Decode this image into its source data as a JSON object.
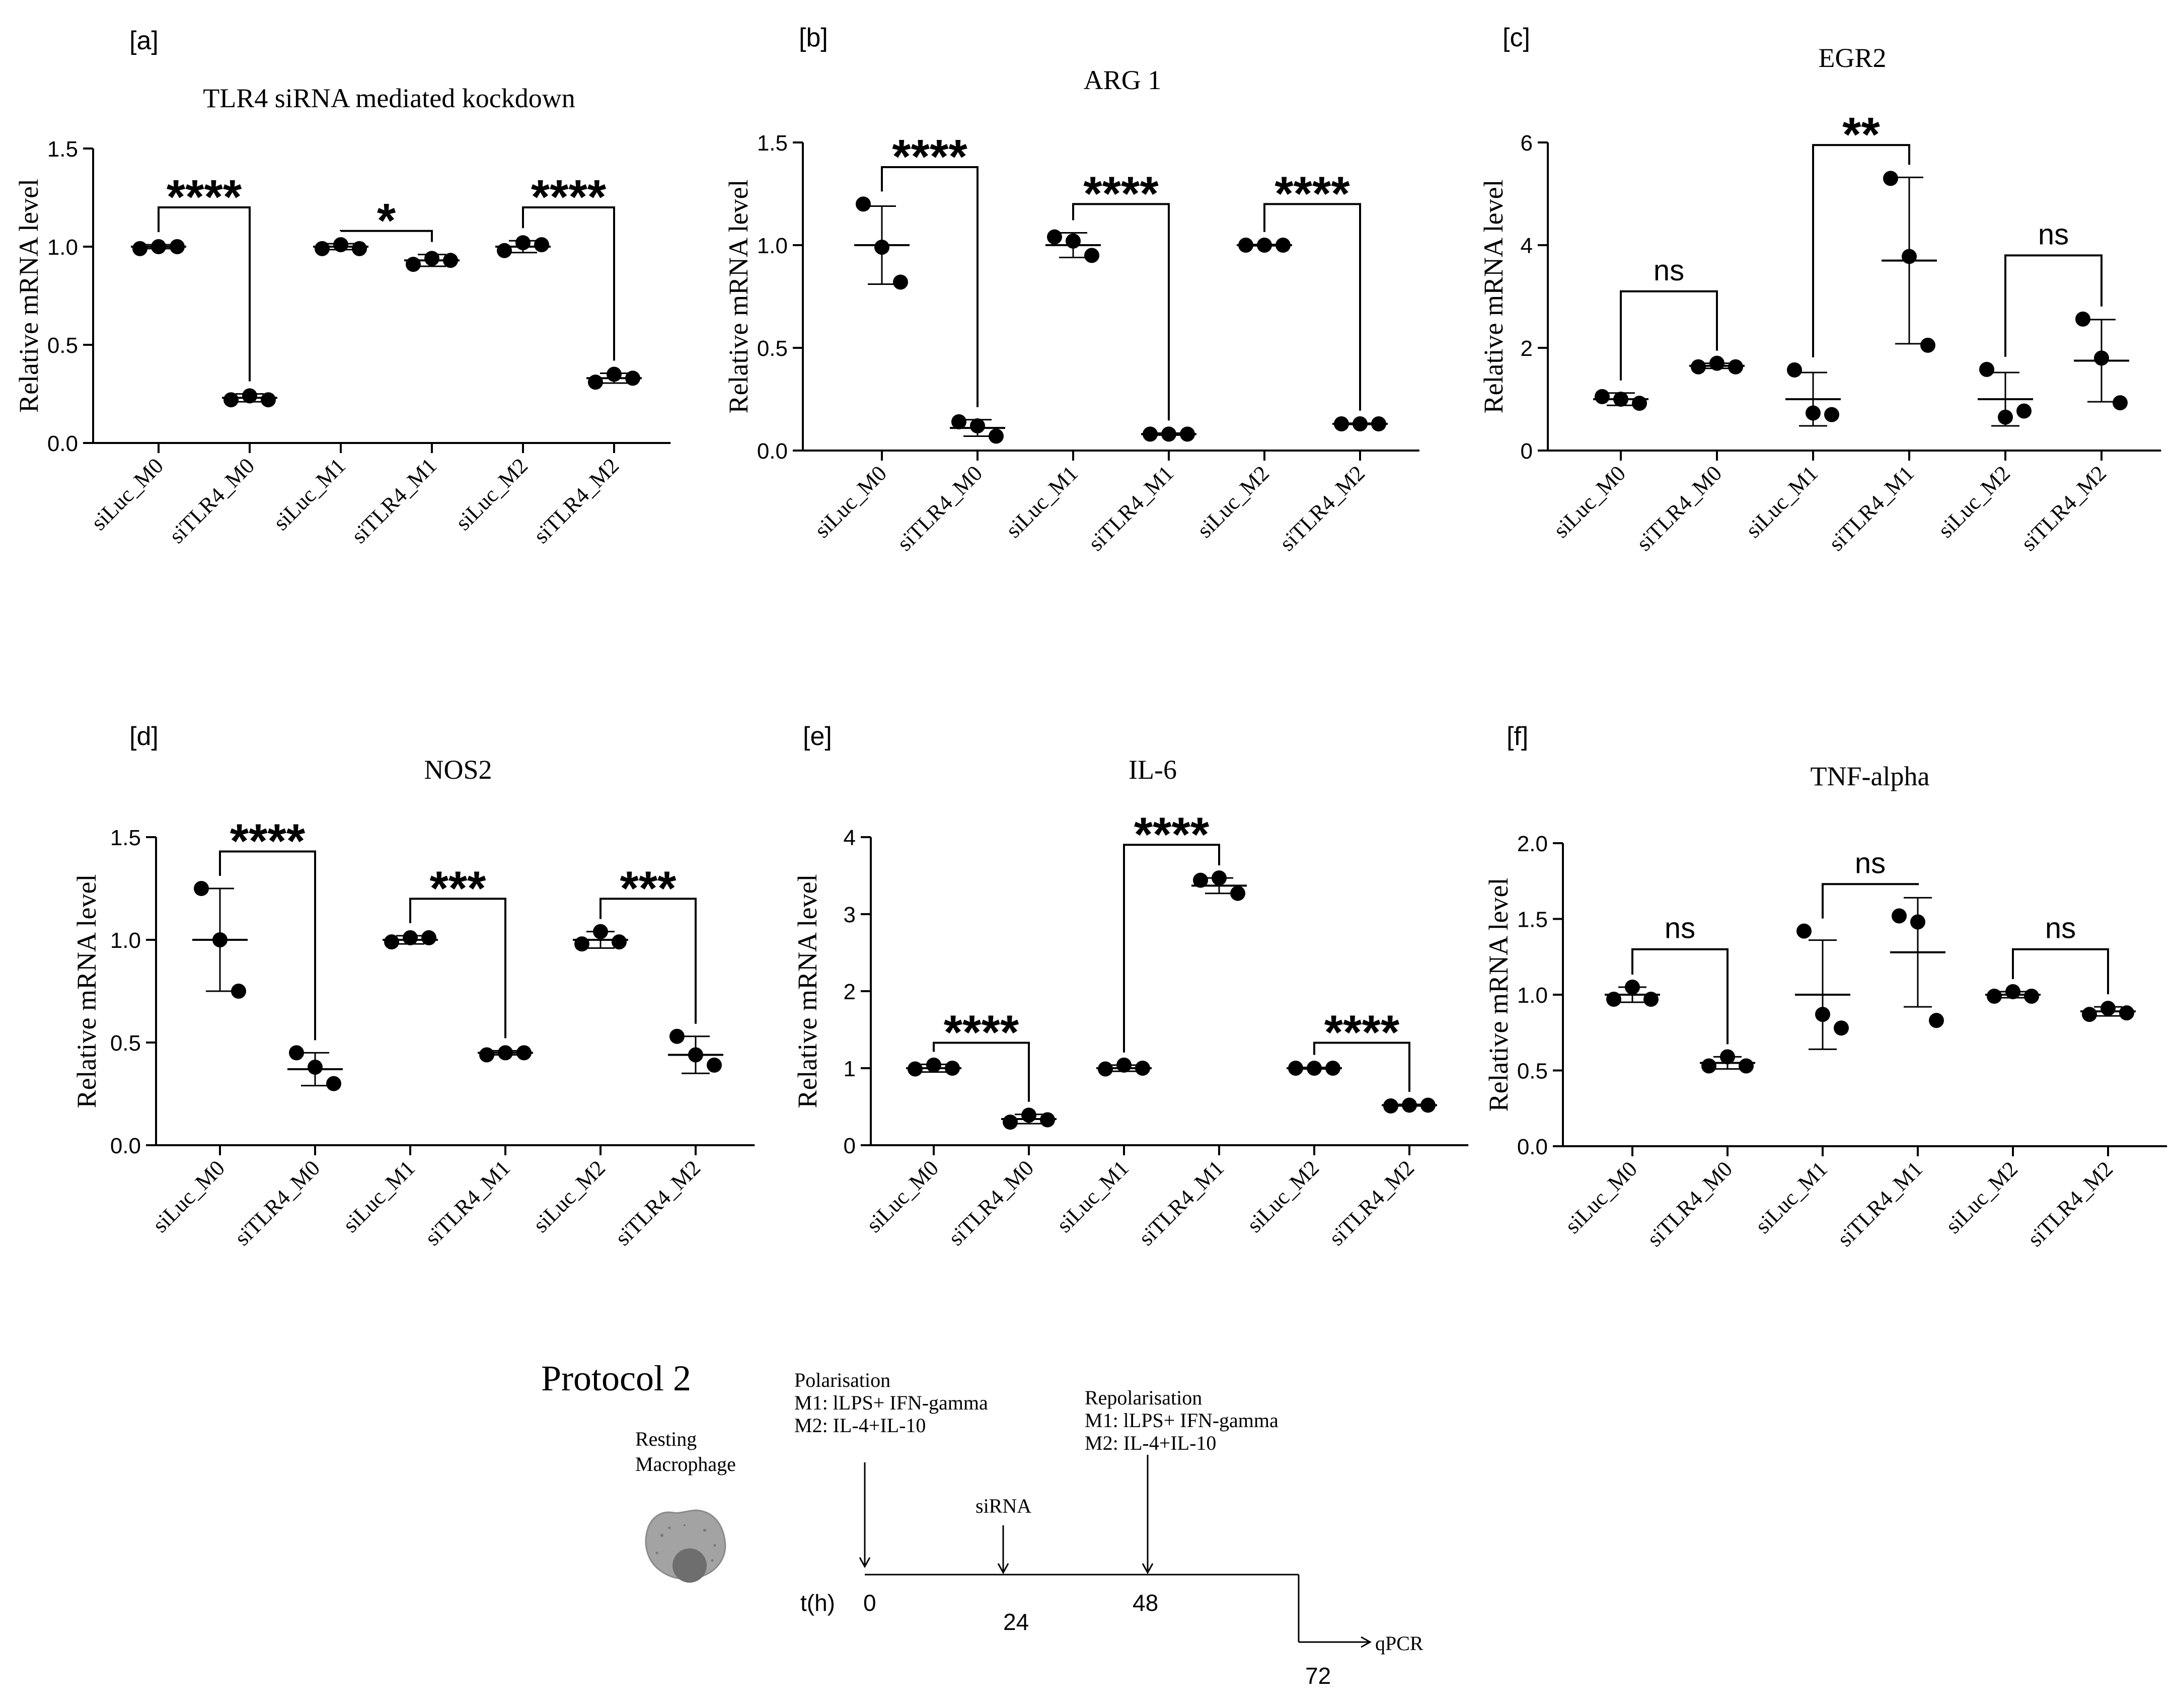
{
  "chart_data": [
    {
      "type": "scatter",
      "panel_label": "[a]",
      "title": "TLR4 siRNA mediated kockdown",
      "ylabel": "Relative mRNA level",
      "ylim": [
        0,
        1.5
      ],
      "yticks": [
        0,
        0.5,
        1.0,
        1.5
      ],
      "ytick_labels": [
        "0.0",
        "0.5",
        "1.0",
        "1.5"
      ],
      "categories": [
        "siLuc_M0",
        "siTLR4_M0",
        "siLuc_M1",
        "siTLR4_M1",
        "siLuc_M2",
        "siTLR4_M2"
      ],
      "groups": [
        {
          "mean": 1.0,
          "sd": 0.01,
          "points": [
            0.99,
            1.0,
            1.0
          ]
        },
        {
          "mean": 0.23,
          "sd": 0.02,
          "points": [
            0.22,
            0.24,
            0.22
          ]
        },
        {
          "mean": 1.0,
          "sd": 0.015,
          "points": [
            0.99,
            1.01,
            0.99
          ]
        },
        {
          "mean": 0.93,
          "sd": 0.03,
          "points": [
            0.91,
            0.94,
            0.93
          ]
        },
        {
          "mean": 1.0,
          "sd": 0.03,
          "points": [
            0.98,
            1.02,
            1.01
          ]
        },
        {
          "mean": 0.33,
          "sd": 0.025,
          "points": [
            0.31,
            0.35,
            0.33
          ]
        }
      ],
      "comparisons": [
        {
          "from": 0,
          "to": 1,
          "y": 1.2,
          "label": "****"
        },
        {
          "from": 2,
          "to": 3,
          "y": 1.08,
          "label": "*"
        },
        {
          "from": 4,
          "to": 5,
          "y": 1.2,
          "label": "****"
        }
      ]
    },
    {
      "type": "scatter",
      "panel_label": "[b]",
      "title": "ARG 1",
      "ylabel": "Relative mRNA level",
      "ylim": [
        0,
        1.5
      ],
      "yticks": [
        0,
        0.5,
        1.0,
        1.5
      ],
      "ytick_labels": [
        "0.0",
        "0.5",
        "1.0",
        "1.5"
      ],
      "categories": [
        "siLuc_M0",
        "siTLR4_M0",
        "siLuc_M1",
        "siTLR4_M1",
        "siLuc_M2",
        "siTLR4_M2"
      ],
      "groups": [
        {
          "mean": 1.0,
          "sd": 0.19,
          "points": [
            1.2,
            0.99,
            0.82
          ]
        },
        {
          "mean": 0.11,
          "sd": 0.04,
          "points": [
            0.14,
            0.12,
            0.07
          ]
        },
        {
          "mean": 1.0,
          "sd": 0.06,
          "points": [
            1.04,
            1.02,
            0.95
          ]
        },
        {
          "mean": 0.08,
          "sd": 0.005,
          "points": [
            0.08,
            0.08,
            0.08
          ]
        },
        {
          "mean": 1.0,
          "sd": 0.003,
          "points": [
            1.0,
            1.0,
            1.0
          ]
        },
        {
          "mean": 0.13,
          "sd": 0.003,
          "points": [
            0.13,
            0.13,
            0.13
          ]
        }
      ],
      "comparisons": [
        {
          "from": 0,
          "to": 1,
          "y": 1.38,
          "label": "****"
        },
        {
          "from": 2,
          "to": 3,
          "y": 1.2,
          "label": "****"
        },
        {
          "from": 4,
          "to": 5,
          "y": 1.2,
          "label": "****"
        }
      ]
    },
    {
      "type": "scatter",
      "panel_label": "[c]",
      "title": "EGR2",
      "ylabel": "Relative mRNA level",
      "ylim": [
        0,
        6
      ],
      "yticks": [
        0,
        2,
        4,
        6
      ],
      "ytick_labels": [
        "0",
        "2",
        "4",
        "6"
      ],
      "categories": [
        "siLuc_M0",
        "siTLR4_M0",
        "siLuc_M1",
        "siTLR4_M1",
        "siLuc_M2",
        "siTLR4_M2"
      ],
      "groups": [
        {
          "mean": 1.0,
          "sd": 0.12,
          "points": [
            1.05,
            1.0,
            0.92
          ]
        },
        {
          "mean": 1.65,
          "sd": 0.05,
          "points": [
            1.63,
            1.7,
            1.63
          ]
        },
        {
          "mean": 1.0,
          "sd": 0.52,
          "points": [
            1.57,
            0.73,
            0.7
          ]
        },
        {
          "mean": 3.7,
          "sd": 1.62,
          "points": [
            5.3,
            3.78,
            2.05
          ]
        },
        {
          "mean": 1.0,
          "sd": 0.52,
          "points": [
            1.58,
            0.65,
            0.77
          ]
        },
        {
          "mean": 1.75,
          "sd": 0.8,
          "points": [
            2.56,
            1.8,
            0.93
          ]
        }
      ],
      "comparisons": [
        {
          "from": 0,
          "to": 1,
          "y": 3.1,
          "label": "ns"
        },
        {
          "from": 2,
          "to": 3,
          "y": 5.95,
          "label": "**"
        },
        {
          "from": 4,
          "to": 5,
          "y": 3.8,
          "label": "ns"
        }
      ]
    },
    {
      "type": "scatter",
      "panel_label": "[d]",
      "title": "NOS2",
      "ylabel": "Relative mRNA level",
      "ylim": [
        0,
        1.5
      ],
      "yticks": [
        0,
        0.5,
        1.0,
        1.5
      ],
      "ytick_labels": [
        "0.0",
        "0.5",
        "1.0",
        "1.5"
      ],
      "categories": [
        "siLuc_M0",
        "siTLR4_M0",
        "siLuc_M1",
        "siTLR4_M1",
        "siLuc_M2",
        "siTLR4_M2"
      ],
      "groups": [
        {
          "mean": 1.0,
          "sd": 0.25,
          "points": [
            1.25,
            1.0,
            0.75
          ]
        },
        {
          "mean": 0.37,
          "sd": 0.08,
          "points": [
            0.45,
            0.38,
            0.3
          ]
        },
        {
          "mean": 1.0,
          "sd": 0.02,
          "points": [
            0.99,
            1.01,
            1.01
          ]
        },
        {
          "mean": 0.45,
          "sd": 0.01,
          "points": [
            0.44,
            0.45,
            0.45
          ]
        },
        {
          "mean": 1.0,
          "sd": 0.04,
          "points": [
            0.98,
            1.04,
            0.99
          ]
        },
        {
          "mean": 0.44,
          "sd": 0.09,
          "points": [
            0.53,
            0.44,
            0.39
          ]
        }
      ],
      "comparisons": [
        {
          "from": 0,
          "to": 1,
          "y": 1.43,
          "label": "****"
        },
        {
          "from": 2,
          "to": 3,
          "y": 1.2,
          "label": "***"
        },
        {
          "from": 4,
          "to": 5,
          "y": 1.2,
          "label": "***"
        }
      ]
    },
    {
      "type": "scatter",
      "panel_label": "[e]",
      "title": "IL-6",
      "ylabel": "Relative mRNA level",
      "ylim": [
        0,
        4
      ],
      "yticks": [
        0,
        1,
        2,
        3,
        4
      ],
      "ytick_labels": [
        "0",
        "1",
        "2",
        "3",
        "4"
      ],
      "categories": [
        "siLuc_M0",
        "siTLR4_M0",
        "siLuc_M1",
        "siTLR4_M1",
        "siLuc_M2",
        "siTLR4_M2"
      ],
      "groups": [
        {
          "mean": 1.0,
          "sd": 0.05,
          "points": [
            0.99,
            1.04,
            1.0
          ]
        },
        {
          "mean": 0.34,
          "sd": 0.06,
          "points": [
            0.3,
            0.39,
            0.33
          ]
        },
        {
          "mean": 1.0,
          "sd": 0.04,
          "points": [
            0.99,
            1.04,
            1.0
          ]
        },
        {
          "mean": 3.37,
          "sd": 0.1,
          "points": [
            3.44,
            3.47,
            3.27
          ]
        },
        {
          "mean": 1.0,
          "sd": 0.01,
          "points": [
            1.0,
            1.0,
            1.0
          ]
        },
        {
          "mean": 0.52,
          "sd": 0.01,
          "points": [
            0.51,
            0.52,
            0.52
          ]
        }
      ],
      "comparisons": [
        {
          "from": 0,
          "to": 1,
          "y": 1.33,
          "label": "****"
        },
        {
          "from": 2,
          "to": 3,
          "y": 3.9,
          "label": "****"
        },
        {
          "from": 4,
          "to": 5,
          "y": 1.33,
          "label": "****"
        }
      ]
    },
    {
      "type": "scatter",
      "panel_label": "[f]",
      "title": "TNF-alpha",
      "ylabel": "Relative mRNA level",
      "ylim": [
        0,
        2.0
      ],
      "yticks": [
        0,
        0.5,
        1.0,
        1.5,
        2.0
      ],
      "ytick_labels": [
        "0.0",
        "0.5",
        "1.0",
        "1.5",
        "2.0"
      ],
      "categories": [
        "siLuc_M0",
        "siTLR4_M0",
        "siLuc_M1",
        "siTLR4_M1",
        "siLuc_M2",
        "siTLR4_M2"
      ],
      "groups": [
        {
          "mean": 1.0,
          "sd": 0.05,
          "points": [
            0.97,
            1.05,
            0.97
          ]
        },
        {
          "mean": 0.55,
          "sd": 0.04,
          "points": [
            0.53,
            0.59,
            0.53
          ]
        },
        {
          "mean": 1.0,
          "sd": 0.36,
          "points": [
            1.42,
            0.87,
            0.78
          ]
        },
        {
          "mean": 1.28,
          "sd": 0.36,
          "points": [
            1.52,
            1.48,
            0.83
          ]
        },
        {
          "mean": 1.0,
          "sd": 0.02,
          "points": [
            0.99,
            1.02,
            0.99
          ]
        },
        {
          "mean": 0.89,
          "sd": 0.03,
          "points": [
            0.87,
            0.91,
            0.88
          ]
        }
      ],
      "comparisons": [
        {
          "from": 0,
          "to": 1,
          "y": 1.3,
          "label": "ns"
        },
        {
          "from": 2,
          "to": 3,
          "y": 1.73,
          "label": "ns"
        },
        {
          "from": 4,
          "to": 5,
          "y": 1.3,
          "label": "ns"
        }
      ]
    }
  ],
  "protocol": {
    "title": "Protocol 2",
    "cell_label_line1": "Resting",
    "cell_label_line2": "Macrophage",
    "polarisation_title": "Polarisation",
    "polarisation_m1": "M1: lLPS+ IFN-gamma",
    "polarisation_m2": "M2: IL-4+IL-10",
    "sirna_label": "siRNA",
    "repolarisation_title": "Repolarisation",
    "repolarisation_m1": "M1: lLPS+ IFN-gamma",
    "repolarisation_m2": "M2: IL-4+IL-10",
    "axis_label": "t(h)",
    "t0": "0",
    "t24": "24",
    "t48": "48",
    "t72": "72",
    "end_label": "qPCR"
  },
  "colors": {
    "ink": "#000000",
    "cell_outer": "#a3a3a3",
    "cell_nucleus": "#6e6e6e"
  }
}
